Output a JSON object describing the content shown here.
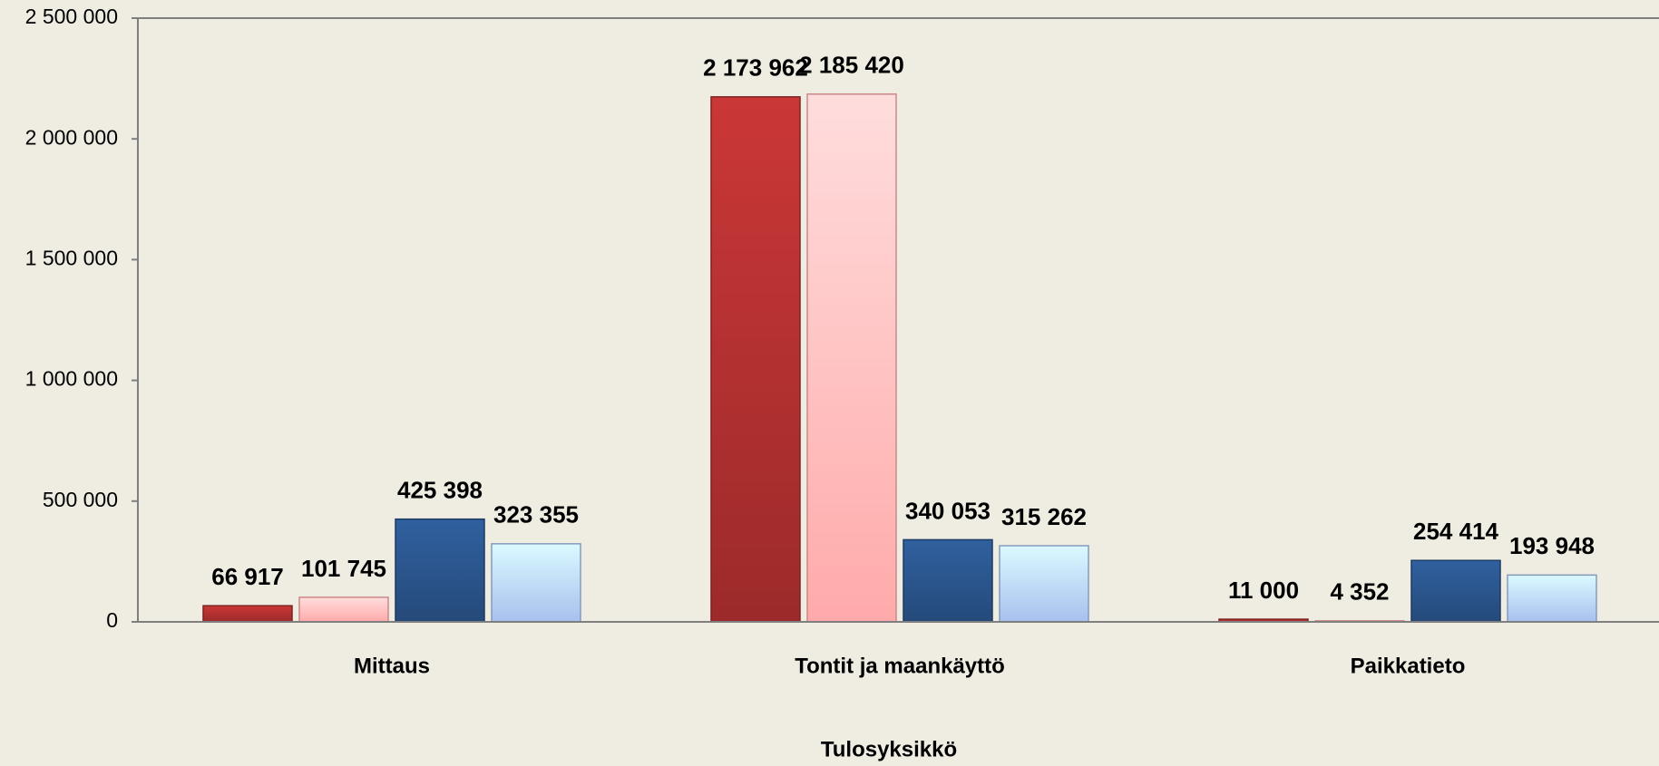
{
  "chart_data": {
    "type": "bar",
    "x_label": "Tulosyksikkö",
    "categories": [
      "Mittaus",
      "Tontit ja maankäyttö",
      "Paikkatieto"
    ],
    "series": [
      {
        "color": "#9c2a2a",
        "values": [
          66917,
          2173962,
          11000
        ],
        "value_labels": [
          "66 917",
          "2 173 962",
          "11 000"
        ]
      },
      {
        "color": "#ffaaaa",
        "values": [
          101745,
          2185420,
          4352
        ],
        "value_labels": [
          "101 745",
          "2 185 420",
          "4 352"
        ]
      },
      {
        "color": "#254a7a",
        "values": [
          425398,
          340053,
          254414
        ],
        "value_labels": [
          "425 398",
          "340 053",
          "254 414"
        ]
      },
      {
        "color": "#a8c0ee",
        "values": [
          323355,
          315262,
          193948
        ],
        "value_labels": [
          "323 355",
          "315 262",
          "193 948"
        ]
      }
    ],
    "ylim": [
      0,
      2500000
    ],
    "yticks": [
      0,
      {
        "value": 500000,
        "label": "500 000"
      },
      {
        "value": 1000000,
        "label": "1 000 000"
      },
      {
        "value": 1500000,
        "label": "1 500 000"
      },
      {
        "value": 2000000,
        "label": "2 000 000"
      },
      {
        "value": 2500000,
        "label": "2 500 000"
      }
    ],
    "grid": false
  }
}
